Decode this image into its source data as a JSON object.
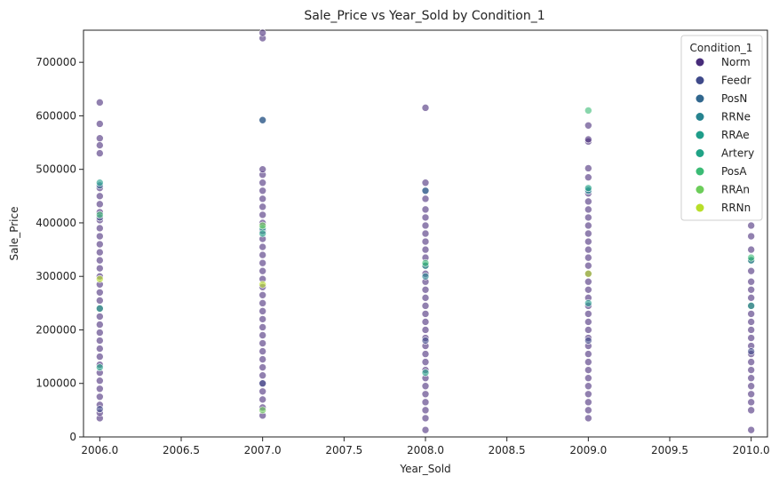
{
  "chart_data": {
    "type": "scatter",
    "title": "Sale_Price vs Year_Sold by Condition_1",
    "xlabel": "Year_Sold",
    "ylabel": "Sale_Price",
    "xlim": [
      2005.9,
      2010.1
    ],
    "ylim": [
      0,
      760000
    ],
    "x_ticks": [
      "2006.0",
      "2006.5",
      "2007.0",
      "2007.5",
      "2008.0",
      "2008.5",
      "2009.0",
      "2009.5",
      "2010.0"
    ],
    "y_ticks": [
      "0",
      "100000",
      "200000",
      "300000",
      "400000",
      "500000",
      "600000",
      "700000"
    ],
    "grid": false,
    "legend": {
      "title": "Condition_1",
      "placement": "top-right"
    },
    "series": [
      {
        "name": "Norm",
        "color": "#472c7a",
        "points": [
          [
            2006,
            35000
          ],
          [
            2006,
            45000
          ],
          [
            2006,
            60000
          ],
          [
            2006,
            75000
          ],
          [
            2006,
            90000
          ],
          [
            2006,
            105000
          ],
          [
            2006,
            120000
          ],
          [
            2006,
            135000
          ],
          [
            2006,
            150000
          ],
          [
            2006,
            165000
          ],
          [
            2006,
            180000
          ],
          [
            2006,
            195000
          ],
          [
            2006,
            210000
          ],
          [
            2006,
            225000
          ],
          [
            2006,
            240000
          ],
          [
            2006,
            255000
          ],
          [
            2006,
            270000
          ],
          [
            2006,
            285000
          ],
          [
            2006,
            300000
          ],
          [
            2006,
            315000
          ],
          [
            2006,
            330000
          ],
          [
            2006,
            345000
          ],
          [
            2006,
            360000
          ],
          [
            2006,
            375000
          ],
          [
            2006,
            390000
          ],
          [
            2006,
            405000
          ],
          [
            2006,
            420000
          ],
          [
            2006,
            435000
          ],
          [
            2006,
            450000
          ],
          [
            2006,
            465000
          ],
          [
            2006,
            530000
          ],
          [
            2006,
            545000
          ],
          [
            2006,
            558000
          ],
          [
            2006,
            585000
          ],
          [
            2006,
            625000
          ],
          [
            2007,
            40000
          ],
          [
            2007,
            55000
          ],
          [
            2007,
            70000
          ],
          [
            2007,
            85000
          ],
          [
            2007,
            100000
          ],
          [
            2007,
            115000
          ],
          [
            2007,
            130000
          ],
          [
            2007,
            145000
          ],
          [
            2007,
            160000
          ],
          [
            2007,
            175000
          ],
          [
            2007,
            190000
          ],
          [
            2007,
            205000
          ],
          [
            2007,
            220000
          ],
          [
            2007,
            235000
          ],
          [
            2007,
            250000
          ],
          [
            2007,
            265000
          ],
          [
            2007,
            280000
          ],
          [
            2007,
            295000
          ],
          [
            2007,
            310000
          ],
          [
            2007,
            325000
          ],
          [
            2007,
            340000
          ],
          [
            2007,
            355000
          ],
          [
            2007,
            370000
          ],
          [
            2007,
            385000
          ],
          [
            2007,
            400000
          ],
          [
            2007,
            415000
          ],
          [
            2007,
            430000
          ],
          [
            2007,
            445000
          ],
          [
            2007,
            460000
          ],
          [
            2007,
            475000
          ],
          [
            2007,
            490000
          ],
          [
            2007,
            500000
          ],
          [
            2007,
            745000
          ],
          [
            2007,
            755000
          ],
          [
            2008,
            13000
          ],
          [
            2008,
            35000
          ],
          [
            2008,
            50000
          ],
          [
            2008,
            65000
          ],
          [
            2008,
            80000
          ],
          [
            2008,
            95000
          ],
          [
            2008,
            110000
          ],
          [
            2008,
            125000
          ],
          [
            2008,
            140000
          ],
          [
            2008,
            155000
          ],
          [
            2008,
            170000
          ],
          [
            2008,
            185000
          ],
          [
            2008,
            200000
          ],
          [
            2008,
            215000
          ],
          [
            2008,
            230000
          ],
          [
            2008,
            245000
          ],
          [
            2008,
            260000
          ],
          [
            2008,
            275000
          ],
          [
            2008,
            290000
          ],
          [
            2008,
            305000
          ],
          [
            2008,
            320000
          ],
          [
            2008,
            335000
          ],
          [
            2008,
            350000
          ],
          [
            2008,
            365000
          ],
          [
            2008,
            380000
          ],
          [
            2008,
            395000
          ],
          [
            2008,
            410000
          ],
          [
            2008,
            425000
          ],
          [
            2008,
            445000
          ],
          [
            2008,
            475000
          ],
          [
            2008,
            615000
          ],
          [
            2009,
            35000
          ],
          [
            2009,
            50000
          ],
          [
            2009,
            65000
          ],
          [
            2009,
            80000
          ],
          [
            2009,
            95000
          ],
          [
            2009,
            110000
          ],
          [
            2009,
            125000
          ],
          [
            2009,
            140000
          ],
          [
            2009,
            155000
          ],
          [
            2009,
            170000
          ],
          [
            2009,
            185000
          ],
          [
            2009,
            200000
          ],
          [
            2009,
            215000
          ],
          [
            2009,
            230000
          ],
          [
            2009,
            245000
          ],
          [
            2009,
            260000
          ],
          [
            2009,
            275000
          ],
          [
            2009,
            290000
          ],
          [
            2009,
            305000
          ],
          [
            2009,
            320000
          ],
          [
            2009,
            335000
          ],
          [
            2009,
            350000
          ],
          [
            2009,
            365000
          ],
          [
            2009,
            380000
          ],
          [
            2009,
            395000
          ],
          [
            2009,
            410000
          ],
          [
            2009,
            425000
          ],
          [
            2009,
            440000
          ],
          [
            2009,
            455000
          ],
          [
            2009,
            485000
          ],
          [
            2009,
            502000
          ],
          [
            2009,
            552000
          ],
          [
            2009,
            556000
          ],
          [
            2009,
            582000
          ],
          [
            2010,
            13000
          ],
          [
            2010,
            50000
          ],
          [
            2010,
            65000
          ],
          [
            2010,
            80000
          ],
          [
            2010,
            95000
          ],
          [
            2010,
            110000
          ],
          [
            2010,
            125000
          ],
          [
            2010,
            140000
          ],
          [
            2010,
            155000
          ],
          [
            2010,
            170000
          ],
          [
            2010,
            185000
          ],
          [
            2010,
            200000
          ],
          [
            2010,
            215000
          ],
          [
            2010,
            230000
          ],
          [
            2010,
            245000
          ],
          [
            2010,
            260000
          ],
          [
            2010,
            275000
          ],
          [
            2010,
            290000
          ],
          [
            2010,
            310000
          ],
          [
            2010,
            330000
          ],
          [
            2010,
            350000
          ],
          [
            2010,
            375000
          ],
          [
            2010,
            395000
          ]
        ]
      },
      {
        "name": "Feedr",
        "color": "#3f4a8a",
        "points": [
          [
            2006,
            52000
          ],
          [
            2006,
            410000
          ],
          [
            2007,
            592000
          ],
          [
            2007,
            100000
          ],
          [
            2008,
            460000
          ],
          [
            2008,
            180000
          ],
          [
            2009,
            180000
          ],
          [
            2010,
            160000
          ]
        ]
      },
      {
        "name": "PosN",
        "color": "#31678e",
        "points": [
          [
            2007,
            592000
          ],
          [
            2008,
            460000
          ],
          [
            2009,
            462000
          ],
          [
            2006,
            470000
          ]
        ]
      },
      {
        "name": "RRNe",
        "color": "#26838f",
        "points": [
          [
            2008,
            300000
          ],
          [
            2009,
            460000
          ]
        ]
      },
      {
        "name": "RRAe",
        "color": "#1f9d8a",
        "points": [
          [
            2006,
            475000
          ],
          [
            2007,
            390000
          ],
          [
            2008,
            320000
          ],
          [
            2010,
            330000
          ],
          [
            2009,
            250000
          ]
        ]
      },
      {
        "name": "Artery",
        "color": "#20a386",
        "points": [
          [
            2006,
            240000
          ],
          [
            2007,
            380000
          ],
          [
            2008,
            120000
          ],
          [
            2009,
            465000
          ],
          [
            2010,
            245000
          ],
          [
            2006,
            130000
          ]
        ]
      },
      {
        "name": "PosA",
        "color": "#3bbb75",
        "points": [
          [
            2009,
            610000
          ],
          [
            2010,
            335000
          ],
          [
            2008,
            325000
          ],
          [
            2006,
            415000
          ]
        ]
      },
      {
        "name": "RRAn",
        "color": "#6ccd5a",
        "points": [
          [
            2007,
            50000
          ],
          [
            2007,
            395000
          ]
        ]
      },
      {
        "name": "RRNn",
        "color": "#b8de29",
        "points": [
          [
            2006,
            295000
          ],
          [
            2007,
            285000
          ],
          [
            2009,
            305000
          ]
        ]
      }
    ]
  }
}
